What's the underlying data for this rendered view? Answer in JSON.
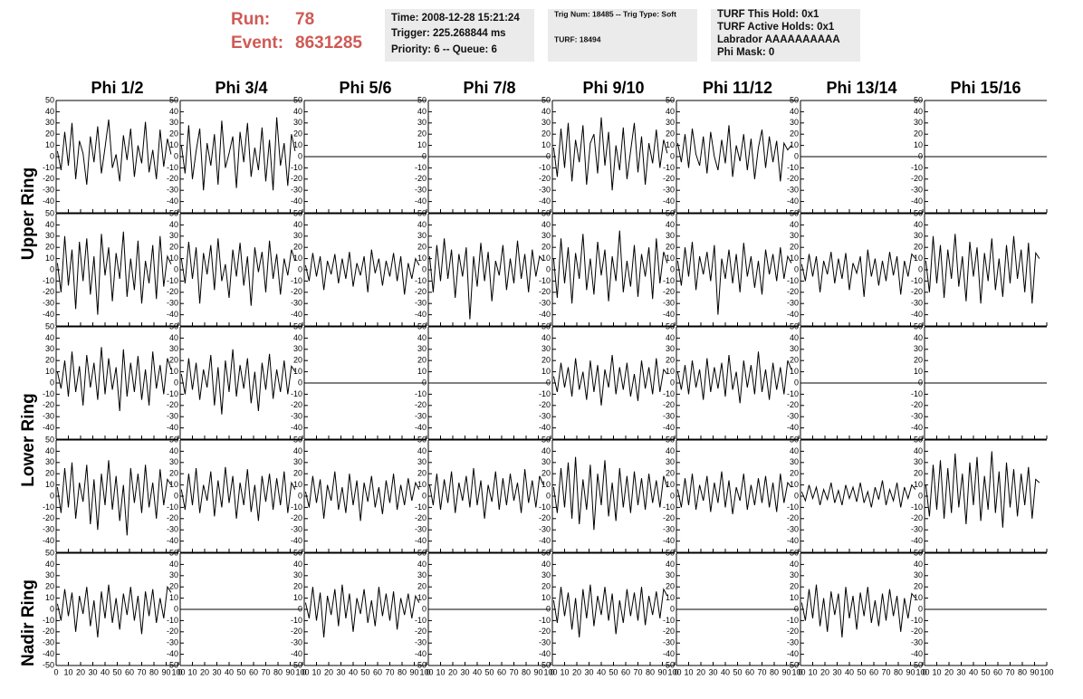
{
  "header": {
    "run_label": "Run:",
    "run": "78",
    "event_label": "Event:",
    "event": "8631285",
    "time_box": [
      "Time: 2008-12-28 15:21:24",
      "Trigger: 225.268844 ms",
      "Priority: 6 -- Queue: 6"
    ],
    "trig_box": [
      "Trig Num: 18485 -- Trig Type: Soft",
      "TURF: 18494"
    ],
    "turf_box": [
      "TURF This Hold: 0x1",
      "TURF Active Holds: 0x1",
      "Labrador AAAAAAAAAA",
      "Phi Mask: 0"
    ]
  },
  "columns": [
    "Phi 1/2",
    "Phi 3/4",
    "Phi 5/6",
    "Phi 7/8",
    "Phi 9/10",
    "Phi 11/12",
    "Phi 13/14",
    "Phi 15/16"
  ],
  "rings": [
    "Upper Ring",
    "Lower Ring",
    "Nadir Ring"
  ],
  "xlim": [
    0,
    100
  ],
  "xticks": [
    0,
    10,
    20,
    30,
    40,
    50,
    60,
    70,
    80,
    90,
    100
  ],
  "ylim": [
    -50,
    50
  ],
  "yticks": [
    -50,
    -40,
    -30,
    -20,
    -10,
    0,
    10,
    20,
    30,
    40,
    50
  ],
  "x": [
    1,
    4,
    7,
    10,
    13,
    16,
    19,
    22,
    25,
    28,
    31,
    34,
    37,
    40,
    43,
    46,
    49,
    52,
    55,
    58,
    61,
    64,
    67,
    70,
    73,
    76,
    79,
    82,
    85,
    88,
    91,
    94
  ],
  "panels": [
    [
      {
        "values": [
          5,
          -12,
          22,
          -8,
          30,
          -20,
          14,
          3,
          -25,
          18,
          -5,
          27,
          -15,
          8,
          33,
          -10,
          2,
          -22,
          19,
          -3,
          25,
          -18,
          10,
          -6,
          31,
          -14,
          6,
          -20,
          24,
          -9,
          16,
          2
        ]
      },
      {
        "values": [
          10,
          -15,
          28,
          -20,
          5,
          25,
          -30,
          12,
          -8,
          20,
          -25,
          32,
          -10,
          3,
          18,
          -28,
          22,
          -5,
          30,
          -18,
          8,
          -12,
          26,
          -22,
          15,
          -30,
          35,
          -8,
          12,
          -26,
          20,
          5
        ]
      },
      {
        "x": [
          0,
          100
        ],
        "values": [
          0,
          0
        ]
      },
      {
        "x": [
          0,
          100
        ],
        "values": [
          0,
          0
        ]
      },
      {
        "values": [
          8,
          -18,
          25,
          -10,
          30,
          -22,
          15,
          -5,
          28,
          -25,
          12,
          20,
          -15,
          35,
          -8,
          22,
          -30,
          10,
          -12,
          26,
          -20,
          5,
          30,
          -14,
          18,
          -25,
          12,
          -6,
          24,
          -10,
          15,
          3
        ]
      },
      {
        "values": [
          12,
          -5,
          20,
          -10,
          25,
          2,
          -8,
          18,
          -15,
          22,
          0,
          -12,
          15,
          -6,
          28,
          -18,
          10,
          -4,
          20,
          -12,
          16,
          -20,
          8,
          24,
          -10,
          18,
          -5,
          14,
          -22,
          12,
          6,
          10
        ]
      },
      {
        "x": [
          0,
          100
        ],
        "values": [
          0,
          0
        ]
      },
      {
        "x": [
          0,
          100
        ],
        "values": [
          0,
          0
        ]
      }
    ],
    [
      {
        "values": [
          6,
          -20,
          30,
          -14,
          18,
          -35,
          25,
          -10,
          28,
          -22,
          12,
          -40,
          32,
          -5,
          20,
          -28,
          15,
          -8,
          34,
          -24,
          10,
          -18,
          26,
          -30,
          8,
          -12,
          22,
          -26,
          30,
          -15,
          12,
          5
        ]
      },
      {
        "values": [
          10,
          -12,
          25,
          -8,
          20,
          -30,
          15,
          -4,
          22,
          -18,
          28,
          -10,
          5,
          -25,
          18,
          -6,
          24,
          -14,
          12,
          -32,
          20,
          -2,
          16,
          -20,
          26,
          -8,
          14,
          -22,
          10,
          -5,
          18,
          8
        ]
      },
      {
        "values": [
          4,
          -10,
          15,
          -6,
          12,
          -18,
          8,
          -4,
          14,
          -12,
          10,
          -8,
          16,
          -15,
          6,
          -5,
          12,
          -20,
          18,
          -3,
          10,
          -14,
          8,
          -6,
          15,
          -10,
          12,
          -22,
          6,
          -8,
          10,
          4
        ]
      },
      {
        "values": [
          12,
          -20,
          22,
          -10,
          28,
          -8,
          18,
          -25,
          14,
          -6,
          20,
          -44,
          12,
          -15,
          24,
          -10,
          16,
          -28,
          8,
          -5,
          22,
          -18,
          10,
          -12,
          26,
          -8,
          14,
          -20,
          18,
          -6,
          12,
          8
        ]
      },
      {
        "values": [
          10,
          -25,
          28,
          -12,
          20,
          -30,
          15,
          -8,
          32,
          -18,
          10,
          -22,
          25,
          -5,
          18,
          -28,
          12,
          -10,
          35,
          -20,
          8,
          -15,
          22,
          -24,
          14,
          -6,
          20,
          -26,
          28,
          -12,
          16,
          6
        ]
      },
      {
        "values": [
          8,
          -14,
          20,
          -6,
          25,
          -18,
          12,
          -4,
          16,
          -10,
          22,
          -40,
          10,
          -8,
          18,
          -12,
          14,
          -20,
          24,
          -6,
          12,
          -16,
          8,
          -22,
          18,
          -4,
          14,
          -10,
          20,
          -8,
          12,
          6
        ]
      },
      {
        "values": [
          5,
          -10,
          14,
          -6,
          12,
          -20,
          8,
          -4,
          16,
          -12,
          10,
          -8,
          15,
          -18,
          6,
          -3,
          12,
          -24,
          18,
          -6,
          10,
          -14,
          8,
          -10,
          16,
          -5,
          12,
          -22,
          8,
          -6,
          14,
          10
        ]
      },
      {
        "values": [
          8,
          -20,
          30,
          -12,
          22,
          -25,
          18,
          -8,
          32,
          -15,
          12,
          -28,
          25,
          -6,
          20,
          -30,
          15,
          -10,
          28,
          -18,
          10,
          -24,
          22,
          -12,
          30,
          -8,
          18,
          -20,
          24,
          -30,
          15,
          10
        ]
      }
    ],
    [
      {
        "values": [
          10,
          -5,
          20,
          -12,
          28,
          -8,
          15,
          -20,
          25,
          -4,
          18,
          -15,
          32,
          -10,
          22,
          -6,
          14,
          -25,
          30,
          -12,
          18,
          -8,
          24,
          -15,
          12,
          -20,
          28,
          -5,
          16,
          -10,
          22,
          12
        ]
      },
      {
        "values": [
          8,
          -10,
          22,
          -6,
          18,
          -15,
          12,
          -4,
          25,
          -20,
          14,
          -28,
          20,
          -8,
          30,
          -12,
          16,
          -5,
          22,
          -18,
          10,
          -25,
          18,
          -6,
          26,
          -14,
          12,
          -8,
          20,
          -10,
          15,
          10
        ]
      },
      {
        "x": [
          0,
          100
        ],
        "values": [
          0,
          0
        ]
      },
      {
        "x": [
          0,
          100
        ],
        "values": [
          0,
          0
        ]
      },
      {
        "values": [
          6,
          -8,
          18,
          -4,
          14,
          -12,
          22,
          -6,
          10,
          -15,
          20,
          -8,
          16,
          -20,
          12,
          -4,
          25,
          -10,
          14,
          -6,
          18,
          -12,
          8,
          -16,
          20,
          -5,
          14,
          -10,
          22,
          -8,
          12,
          8
        ]
      },
      {
        "values": [
          10,
          -6,
          16,
          -10,
          20,
          -4,
          12,
          -15,
          22,
          -8,
          14,
          -5,
          18,
          -12,
          25,
          -6,
          10,
          -18,
          20,
          -4,
          16,
          -10,
          28,
          -8,
          12,
          -15,
          18,
          -6,
          14,
          -10,
          20,
          12
        ]
      },
      {
        "x": [
          0,
          100
        ],
        "values": [
          0,
          0
        ]
      },
      {
        "x": [
          0,
          100
        ],
        "values": [
          0,
          0
        ]
      }
    ],
    [
      {
        "values": [
          8,
          -15,
          25,
          -10,
          30,
          -20,
          12,
          -5,
          28,
          -25,
          15,
          -30,
          20,
          -8,
          32,
          -12,
          18,
          -22,
          10,
          -35,
          25,
          -6,
          20,
          -15,
          28,
          -10,
          12,
          -20,
          24,
          -8,
          15,
          10
        ]
      },
      {
        "values": [
          6,
          -12,
          20,
          -8,
          25,
          -15,
          10,
          -4,
          22,
          -18,
          14,
          -10,
          26,
          -6,
          18,
          -20,
          12,
          -8,
          24,
          -14,
          10,
          -22,
          18,
          -5,
          20,
          -12,
          16,
          -8,
          22,
          -15,
          12,
          6
        ]
      },
      {
        "values": [
          4,
          -10,
          18,
          -6,
          15,
          -20,
          10,
          -4,
          22,
          -12,
          8,
          -15,
          20,
          -8,
          14,
          -22,
          12,
          -5,
          18,
          -10,
          8,
          -16,
          14,
          -6,
          20,
          -12,
          10,
          -8,
          16,
          -4,
          12,
          6
        ]
      },
      {
        "values": [
          10,
          -8,
          20,
          -12,
          15,
          -6,
          22,
          -15,
          12,
          -4,
          18,
          -10,
          25,
          -8,
          14,
          -20,
          10,
          -5,
          22,
          -12,
          16,
          -8,
          20,
          -4,
          12,
          -15,
          24,
          -6,
          14,
          -10,
          18,
          10
        ]
      },
      {
        "values": [
          8,
          -15,
          25,
          -10,
          30,
          -20,
          35,
          -25,
          15,
          -12,
          28,
          -30,
          20,
          -8,
          32,
          -18,
          12,
          -22,
          25,
          -10,
          18,
          -15,
          22,
          -8,
          16,
          -12,
          20,
          -6,
          14,
          -10,
          18,
          8
        ]
      },
      {
        "values": [
          6,
          -10,
          16,
          -8,
          20,
          -12,
          10,
          -4,
          18,
          -14,
          12,
          -6,
          22,
          -10,
          14,
          -16,
          8,
          -4,
          20,
          -12,
          10,
          -8,
          16,
          -6,
          18,
          -10,
          12,
          -14,
          20,
          -6,
          12,
          8
        ]
      },
      {
        "values": [
          4,
          -4,
          10,
          -2,
          8,
          -8,
          6,
          -3,
          12,
          -6,
          5,
          -8,
          10,
          -2,
          8,
          -5,
          12,
          -6,
          4,
          -10,
          8,
          -3,
          14,
          -8,
          6,
          -4,
          12,
          -10,
          8,
          -2,
          10,
          6
        ]
      },
      {
        "values": [
          10,
          -18,
          28,
          -12,
          32,
          -20,
          25,
          -15,
          38,
          -10,
          20,
          -25,
          30,
          -8,
          35,
          -22,
          18,
          -12,
          40,
          -15,
          22,
          -28,
          30,
          -10,
          24,
          -18,
          20,
          -8,
          26,
          -20,
          15,
          12
        ]
      }
    ],
    [
      {
        "values": [
          5,
          -10,
          18,
          -6,
          15,
          -20,
          12,
          -4,
          20,
          -15,
          8,
          -25,
          16,
          -8,
          22,
          -12,
          10,
          -18,
          14,
          -5,
          20,
          -10,
          12,
          -22,
          16,
          -6,
          18,
          -12,
          10,
          -8,
          20,
          15
        ]
      },
      {
        "x": [
          0,
          100
        ],
        "values": [
          0,
          0
        ]
      },
      {
        "values": [
          6,
          -8,
          20,
          -10,
          15,
          -25,
          12,
          -5,
          18,
          -15,
          22,
          -8,
          14,
          -20,
          10,
          -4,
          18,
          -12,
          8,
          -15,
          20,
          -6,
          14,
          -10,
          16,
          -18,
          10,
          -5,
          14,
          -8,
          12,
          6
        ]
      },
      {
        "x": [
          0,
          100
        ],
        "values": [
          0,
          0
        ]
      },
      {
        "values": [
          8,
          -12,
          20,
          -6,
          15,
          -18,
          10,
          -25,
          18,
          -8,
          22,
          -15,
          12,
          -5,
          20,
          -10,
          14,
          -22,
          8,
          -12,
          18,
          -6,
          15,
          -10,
          20,
          -14,
          12,
          -5,
          16,
          -8,
          18,
          12
        ]
      },
      {
        "x": [
          0,
          100
        ],
        "values": [
          0,
          0
        ]
      },
      {
        "values": [
          6,
          -10,
          18,
          -8,
          22,
          -15,
          10,
          -20,
          16,
          -5,
          14,
          -25,
          20,
          -8,
          12,
          -18,
          15,
          -6,
          20,
          -12,
          8,
          -15,
          14,
          -10,
          18,
          -6,
          12,
          -20,
          10,
          -8,
          14,
          10
        ]
      },
      {
        "x": [
          0,
          100
        ],
        "values": [
          0,
          0
        ]
      }
    ]
  ]
}
